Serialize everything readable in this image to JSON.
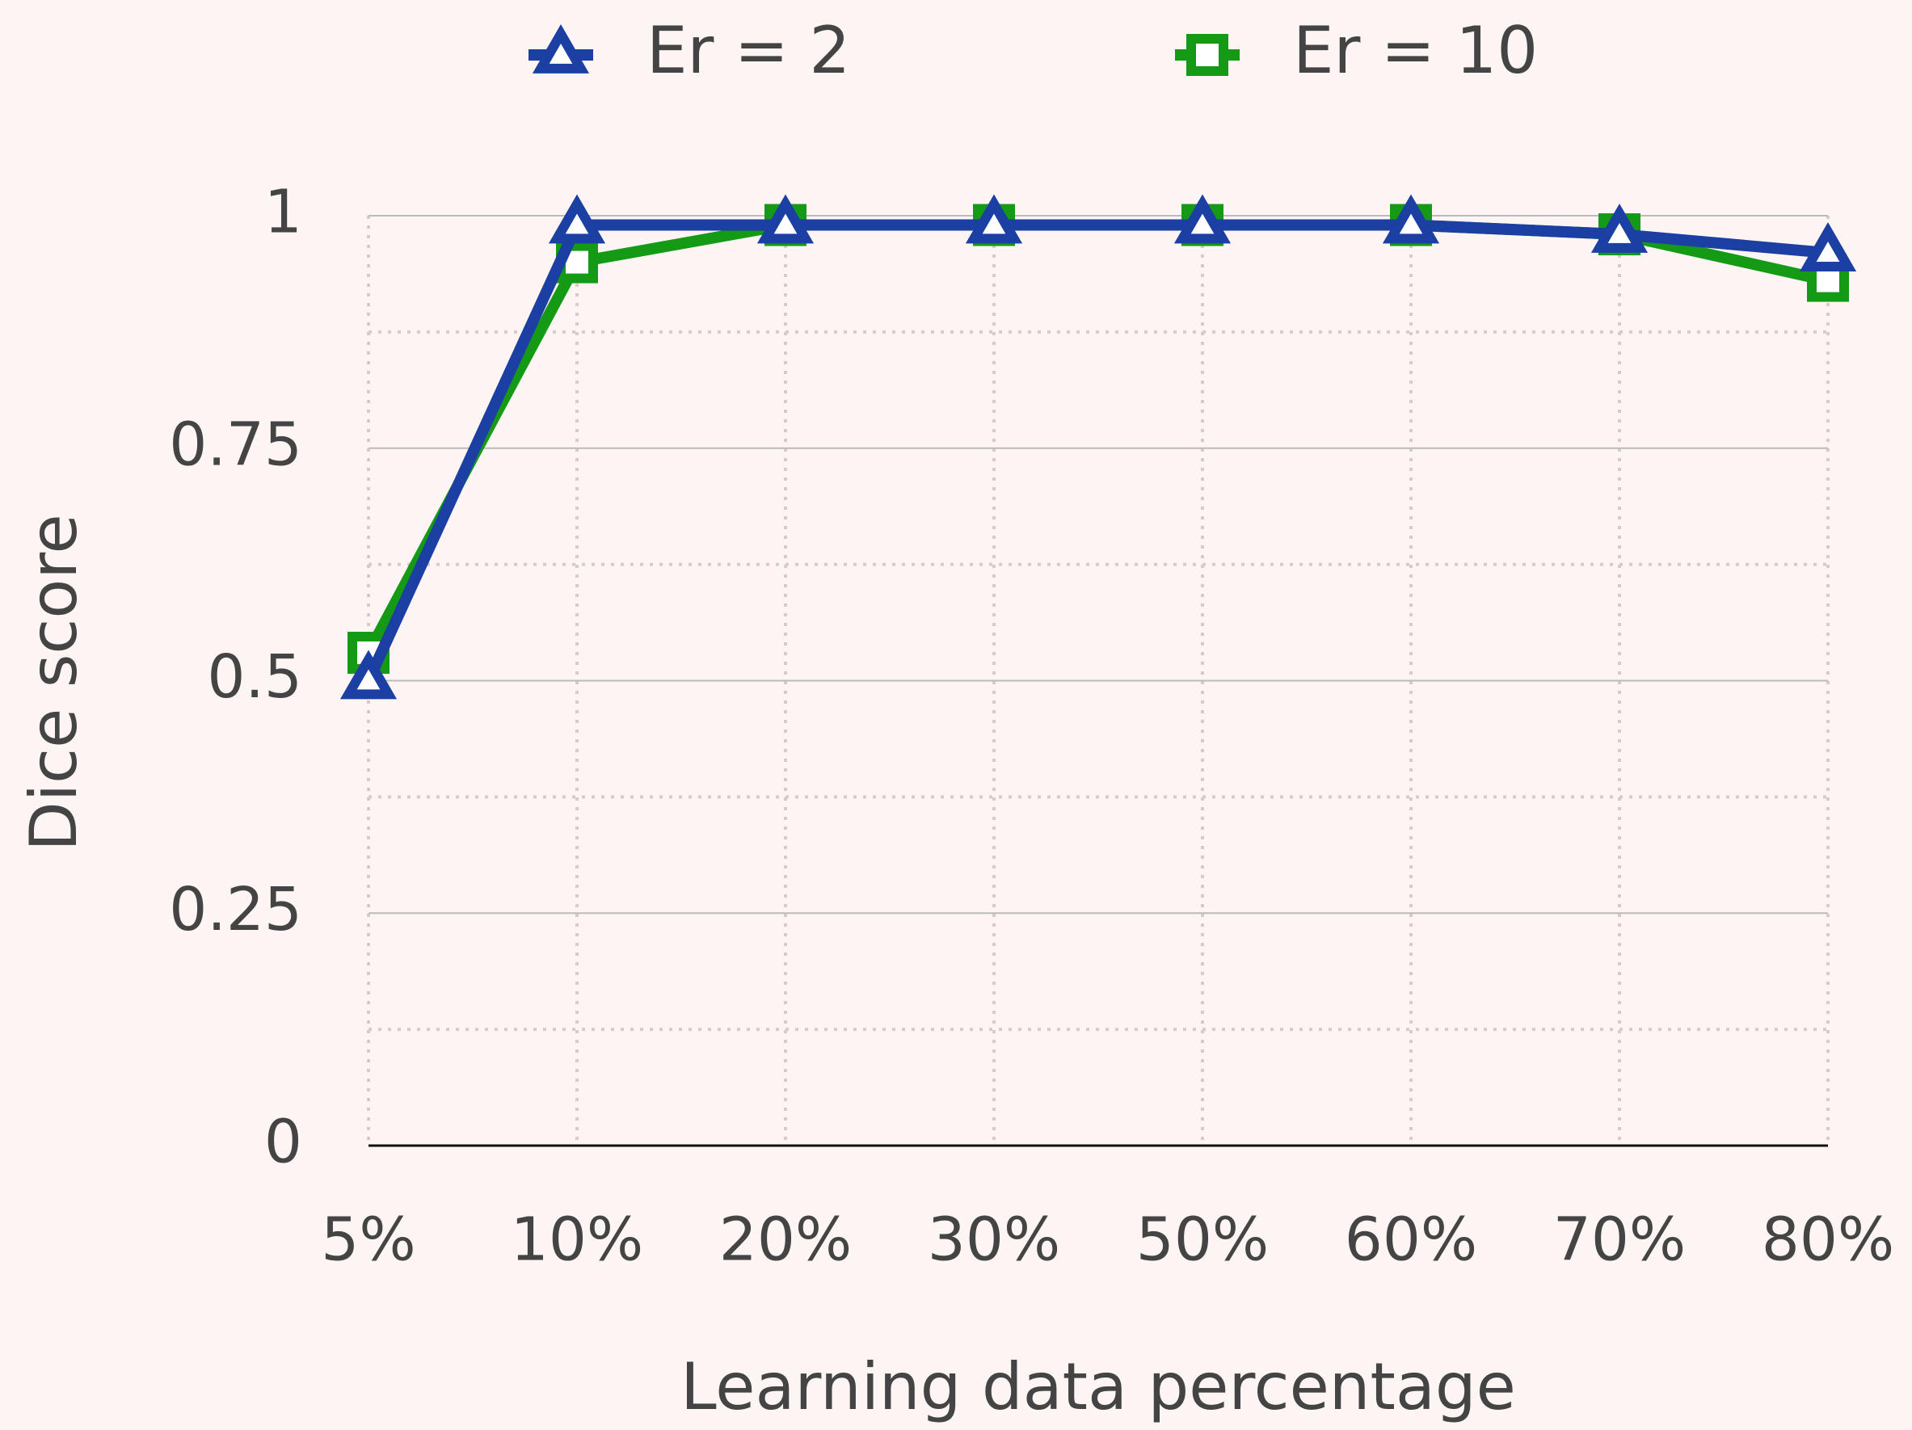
{
  "chart_data": {
    "type": "line",
    "x_label": "Learning data percentage",
    "y_label": "Dice score",
    "categories": [
      "5%",
      "10%",
      "20%",
      "30%",
      "50%",
      "60%",
      "70%",
      "80%"
    ],
    "series": [
      {
        "name": "Er = 2",
        "color": "#1c3fa3",
        "marker": "triangle",
        "values": [
          0.5,
          0.99,
          0.99,
          0.99,
          0.99,
          0.99,
          0.98,
          0.96
        ]
      },
      {
        "name": "Er = 10",
        "color": "#159a16",
        "marker": "square",
        "values": [
          0.53,
          0.95,
          0.99,
          0.99,
          0.99,
          0.99,
          0.98,
          0.93
        ]
      }
    ],
    "ylim": [
      0,
      1
    ],
    "yticks": [
      0,
      0.25,
      0.5,
      0.75,
      1
    ],
    "y_minor_ticks": [
      0.125,
      0.375,
      0.625,
      0.875
    ],
    "grid": true,
    "legend": "top"
  }
}
